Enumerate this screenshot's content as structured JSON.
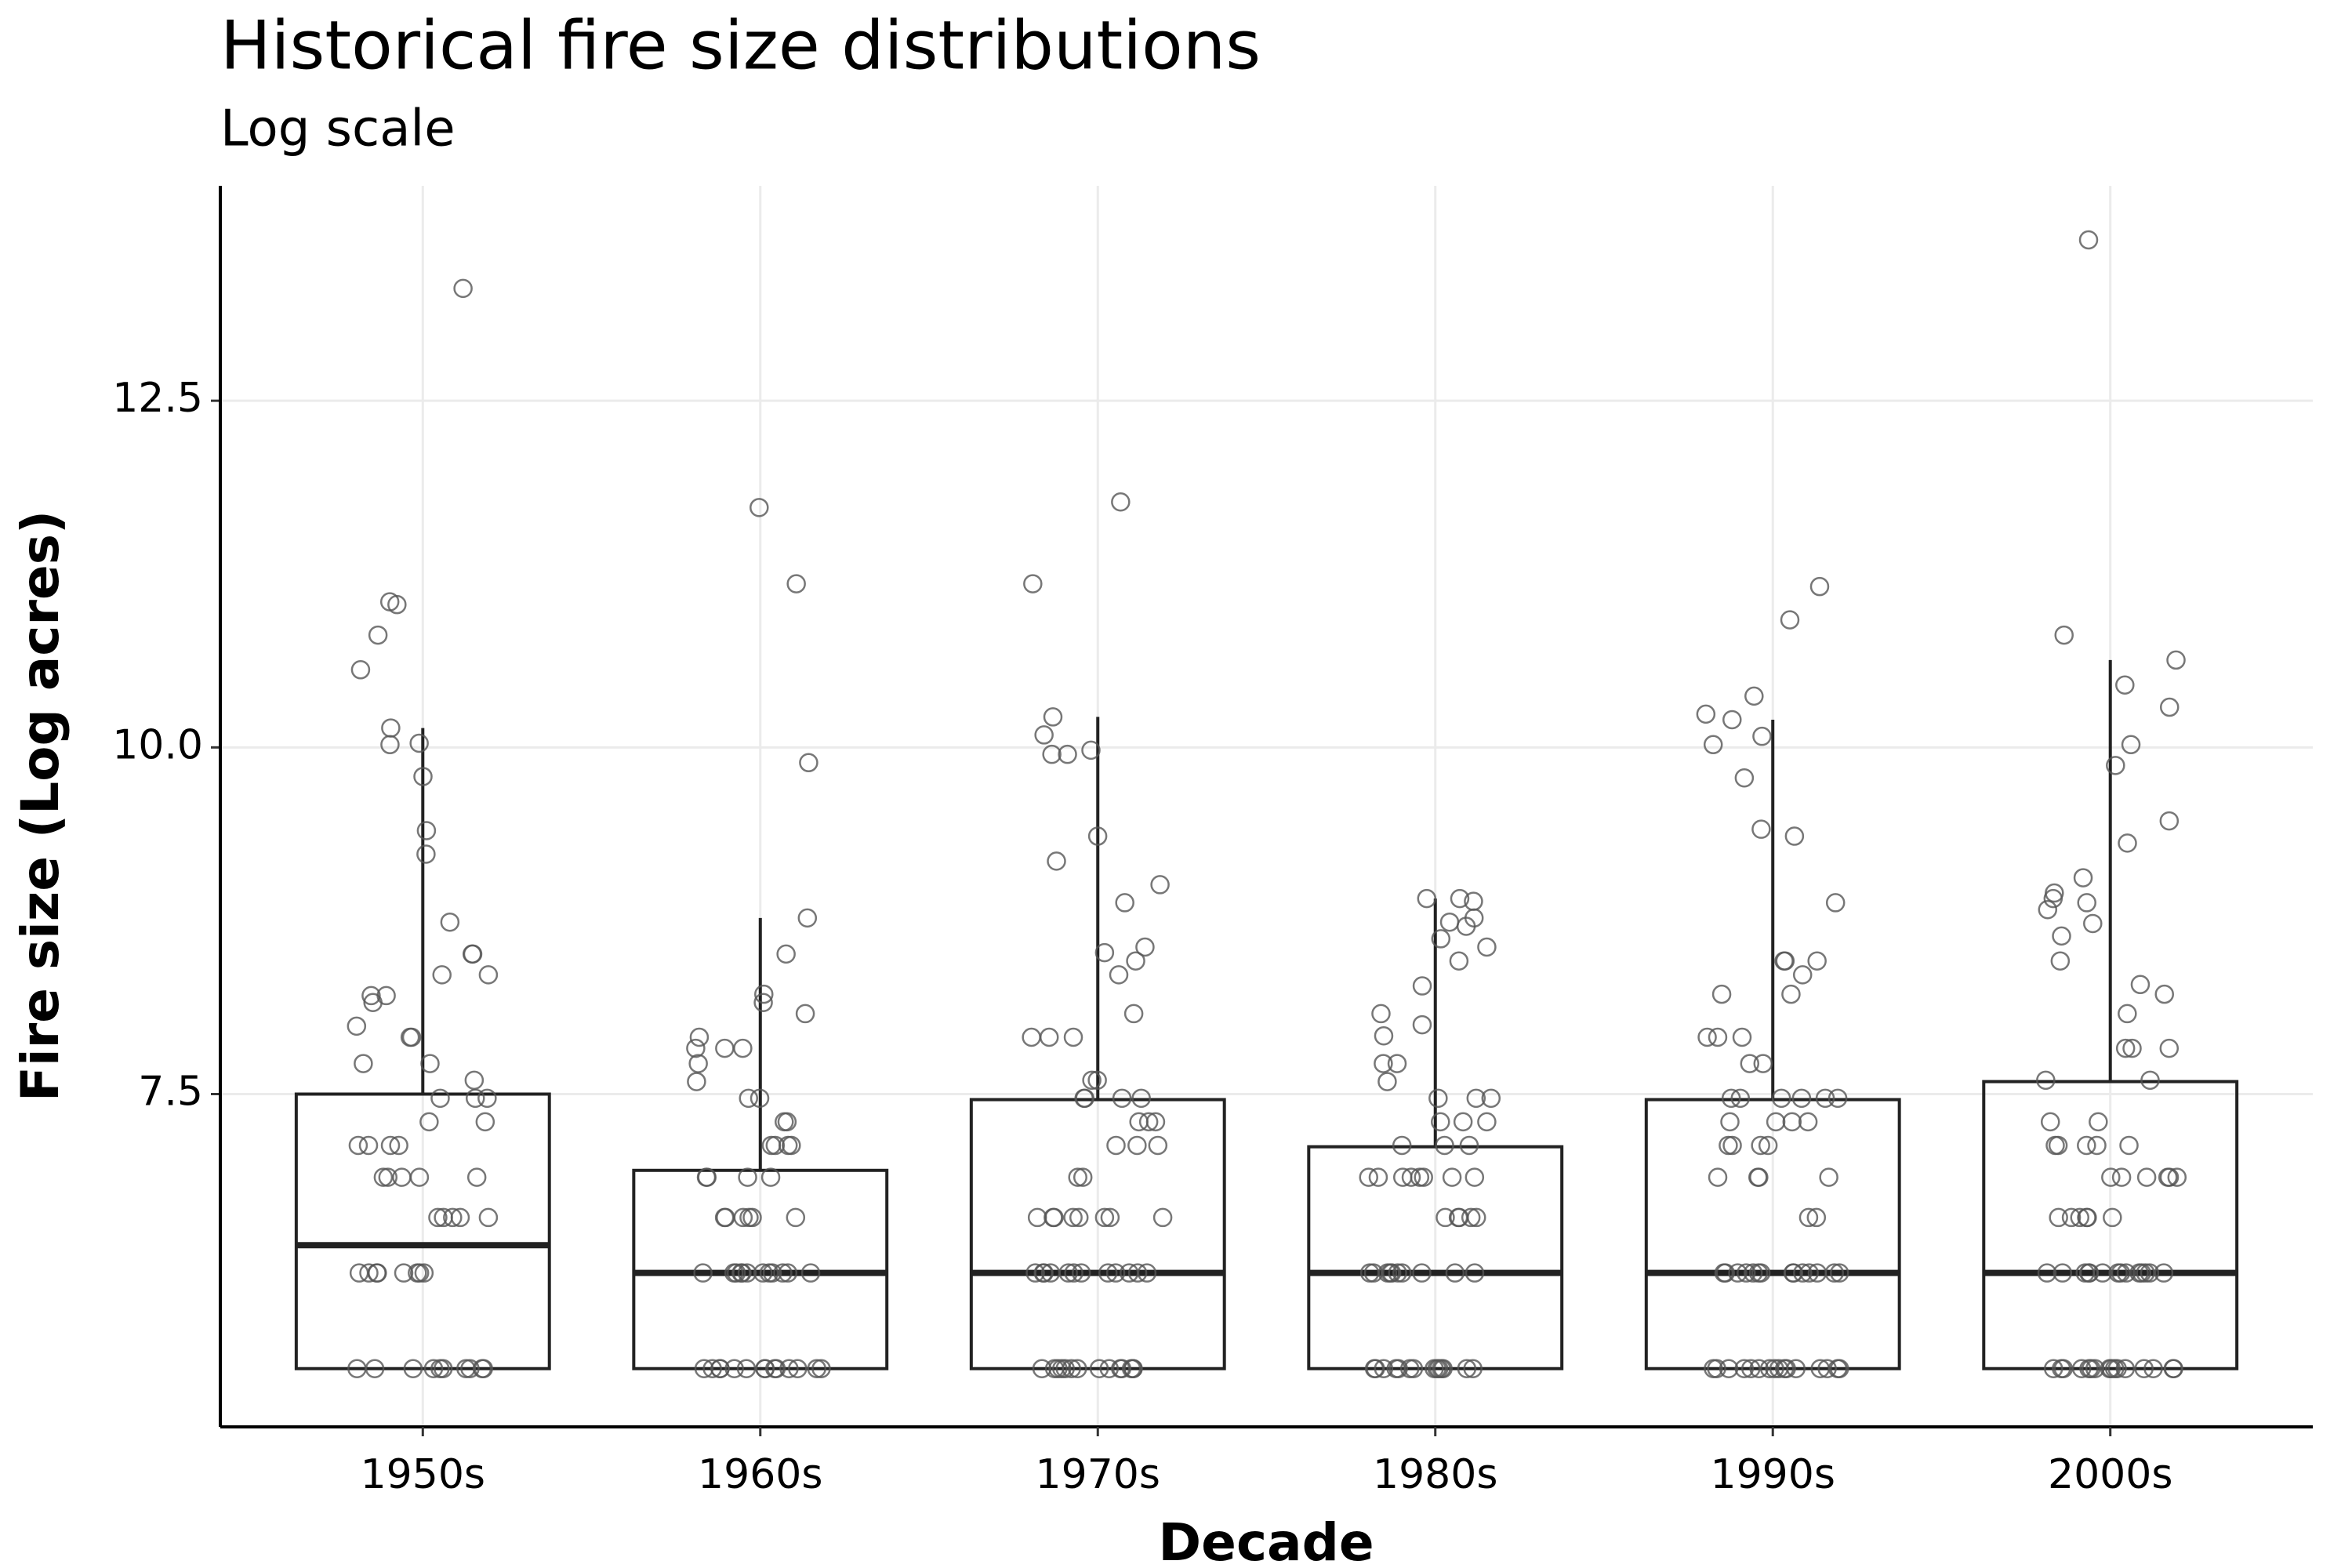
{
  "chart_data": {
    "type": "boxplot",
    "title": "Historical fire size distributions",
    "subtitle": "Log scale",
    "x_label": "Decade",
    "y_label": "Fire size (Log acres)",
    "categories": [
      "1950s",
      "1960s",
      "1970s",
      "1980s",
      "1990s",
      "2000s"
    ],
    "boxes": [
      {
        "low": 5.52,
        "q1": 5.52,
        "median": 6.41,
        "q3": 7.5,
        "high": 10.14
      },
      {
        "low": 5.52,
        "q1": 5.52,
        "median": 6.21,
        "q3": 6.95,
        "high": 8.77
      },
      {
        "low": 5.52,
        "q1": 5.52,
        "median": 6.21,
        "q3": 7.46,
        "high": 10.22
      },
      {
        "low": 5.52,
        "q1": 5.52,
        "median": 6.21,
        "q3": 7.12,
        "high": 8.91
      },
      {
        "low": 5.52,
        "q1": 5.52,
        "median": 6.21,
        "q3": 7.46,
        "high": 10.2
      },
      {
        "low": 5.52,
        "q1": 5.52,
        "median": 6.21,
        "q3": 7.59,
        "high": 10.63
      }
    ],
    "points": [
      [
        13.31,
        11.05,
        11.03,
        10.81,
        10.56,
        10.14,
        10.03,
        10.02,
        9.79,
        9.4,
        9.23,
        8.74,
        8.51,
        8.51,
        8.36,
        8.36,
        8.21,
        8.21,
        8.16,
        7.99,
        7.91,
        7.91,
        7.72,
        7.72,
        7.6,
        7.47,
        7.47,
        7.47,
        7.3,
        7.3,
        7.13,
        7.13,
        7.13,
        7.13,
        6.9,
        6.9,
        6.9,
        6.9,
        6.9,
        6.61,
        6.61,
        6.61,
        6.61,
        6.61,
        6.21,
        6.21,
        6.21,
        6.21,
        6.21,
        6.21,
        6.21,
        6.21,
        5.52,
        5.52,
        5.52,
        5.52,
        5.52,
        5.52,
        5.52,
        5.52,
        5.52,
        5.52
      ],
      [
        11.73,
        11.18,
        9.89,
        8.77,
        8.51,
        8.22,
        8.16,
        8.08,
        7.91,
        7.83,
        7.83,
        7.83,
        7.72,
        7.59,
        7.47,
        7.47,
        7.3,
        7.3,
        7.13,
        7.13,
        7.13,
        7.13,
        6.9,
        6.9,
        6.9,
        6.9,
        6.61,
        6.61,
        6.61,
        6.61,
        6.61,
        6.61,
        6.21,
        6.21,
        6.21,
        6.21,
        6.21,
        6.21,
        6.21,
        6.21,
        6.21,
        6.21,
        6.21,
        6.21,
        5.52,
        5.52,
        5.52,
        5.52,
        5.52,
        5.52,
        5.52,
        5.52,
        5.52,
        5.52,
        5.52,
        5.52,
        5.52,
        5.52
      ],
      [
        11.77,
        11.18,
        10.22,
        10.09,
        9.98,
        9.95,
        9.95,
        9.36,
        9.18,
        9.01,
        8.88,
        8.56,
        8.52,
        8.46,
        8.36,
        8.08,
        7.91,
        7.91,
        7.91,
        7.6,
        7.6,
        7.47,
        7.47,
        7.47,
        7.47,
        7.3,
        7.3,
        7.3,
        7.13,
        7.13,
        7.13,
        6.9,
        6.9,
        6.61,
        6.61,
        6.61,
        6.61,
        6.61,
        6.61,
        6.61,
        6.61,
        6.21,
        6.21,
        6.21,
        6.21,
        6.21,
        6.21,
        6.21,
        6.21,
        6.21,
        6.21,
        6.21,
        6.21,
        5.52,
        5.52,
        5.52,
        5.52,
        5.52,
        5.52,
        5.52,
        5.52,
        5.52,
        5.52,
        5.52,
        5.52,
        5.52,
        5.52
      ],
      [
        8.91,
        8.91,
        8.89,
        8.77,
        8.74,
        8.71,
        8.62,
        8.56,
        8.46,
        8.28,
        8.08,
        8.0,
        7.92,
        7.72,
        7.72,
        7.59,
        7.47,
        7.47,
        7.47,
        7.3,
        7.3,
        7.3,
        7.13,
        7.13,
        7.13,
        6.9,
        6.9,
        6.9,
        6.9,
        6.9,
        6.9,
        6.9,
        6.9,
        6.61,
        6.61,
        6.61,
        6.61,
        6.61,
        6.21,
        6.21,
        6.21,
        6.21,
        6.21,
        6.21,
        6.21,
        6.21,
        6.21,
        6.21,
        5.52,
        5.52,
        5.52,
        5.52,
        5.52,
        5.52,
        5.52,
        5.52,
        5.52,
        5.52,
        5.52,
        5.52,
        5.52,
        5.52
      ],
      [
        11.16,
        10.92,
        10.37,
        10.24,
        10.2,
        10.08,
        10.02,
        9.78,
        9.41,
        9.36,
        8.88,
        8.46,
        8.46,
        8.46,
        8.36,
        8.22,
        8.22,
        7.91,
        7.91,
        7.91,
        7.72,
        7.72,
        7.47,
        7.47,
        7.47,
        7.47,
        7.47,
        7.47,
        7.3,
        7.3,
        7.3,
        7.3,
        7.13,
        7.13,
        7.13,
        7.13,
        6.9,
        6.9,
        6.9,
        6.9,
        6.61,
        6.61,
        6.21,
        6.21,
        6.21,
        6.21,
        6.21,
        6.21,
        6.21,
        6.21,
        6.21,
        6.21,
        6.21,
        6.21,
        6.21,
        6.21,
        5.52,
        5.52,
        5.52,
        5.52,
        5.52,
        5.52,
        5.52,
        5.52,
        5.52,
        5.52,
        5.52,
        5.52,
        5.52,
        5.52,
        5.52,
        5.52
      ],
      [
        13.66,
        10.81,
        10.63,
        10.45,
        10.29,
        10.02,
        9.87,
        9.47,
        9.31,
        9.06,
        8.95,
        8.91,
        8.88,
        8.83,
        8.73,
        8.64,
        8.46,
        8.29,
        8.22,
        8.08,
        7.83,
        7.83,
        7.83,
        7.6,
        7.6,
        7.3,
        7.3,
        7.13,
        7.13,
        7.13,
        7.13,
        7.13,
        6.9,
        6.9,
        6.9,
        6.9,
        6.9,
        6.9,
        6.61,
        6.61,
        6.61,
        6.61,
        6.61,
        6.61,
        6.21,
        6.21,
        6.21,
        6.21,
        6.21,
        6.21,
        6.21,
        6.21,
        6.21,
        6.21,
        6.21,
        6.21,
        6.21,
        6.21,
        5.52,
        5.52,
        5.52,
        5.52,
        5.52,
        5.52,
        5.52,
        5.52,
        5.52,
        5.52,
        5.52,
        5.52,
        5.52,
        5.52,
        5.52,
        5.52
      ]
    ],
    "ylim": [
      5.1,
      14.05
    ],
    "yticks": [
      7.5,
      {
        "value": 10,
        "label": "10.0"
      },
      12.5
    ],
    "grid": true,
    "box_color": "#222222",
    "point_color": "#555555"
  }
}
